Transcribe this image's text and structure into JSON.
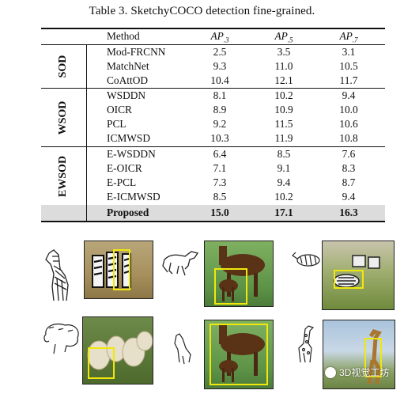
{
  "caption": "Table 3. SketchyCOCO detection fine-grained.",
  "table": {
    "header": {
      "method": "Method",
      "ap3": "AP.3",
      "ap5": "AP.5",
      "ap7": "AP.7"
    },
    "header_parts": {
      "ap": "AP",
      "s3": ".3",
      "s5": ".5",
      "s7": ".7"
    },
    "groups": [
      "SOD",
      "WSOD",
      "EWSOD"
    ],
    "rows": [
      {
        "method": "Mod-FRCNN",
        "ap3": "2.5",
        "ap5": "3.5",
        "ap7": "3.1"
      },
      {
        "method": "MatchNet",
        "ap3": "9.3",
        "ap5": "11.0",
        "ap7": "10.5"
      },
      {
        "method": "CoAttOD",
        "ap3": "10.4",
        "ap5": "12.1",
        "ap7": "11.7"
      },
      {
        "method": "WSDDN",
        "ap3": "8.1",
        "ap5": "10.2",
        "ap7": "9.4"
      },
      {
        "method": "OICR",
        "ap3": "8.9",
        "ap5": "10.9",
        "ap7": "10.0"
      },
      {
        "method": "PCL",
        "ap3": "9.2",
        "ap5": "11.5",
        "ap7": "10.6"
      },
      {
        "method": "ICMWSD",
        "ap3": "10.3",
        "ap5": "11.9",
        "ap7": "10.8"
      },
      {
        "method": "E-WSDDN",
        "ap3": "6.4",
        "ap5": "8.5",
        "ap7": "7.6"
      },
      {
        "method": "E-OICR",
        "ap3": "7.1",
        "ap5": "9.1",
        "ap7": "8.3"
      },
      {
        "method": "E-PCL",
        "ap3": "7.3",
        "ap5": "9.4",
        "ap7": "8.7"
      },
      {
        "method": "E-ICMWSD",
        "ap3": "8.5",
        "ap5": "10.2",
        "ap7": "9.4"
      },
      {
        "method": "Proposed",
        "ap3": "15.0",
        "ap5": "17.1",
        "ap7": "16.3"
      }
    ]
  },
  "figure": {
    "examples": [
      {
        "sketch": "zebra-sketch",
        "photo": "zebras-photo"
      },
      {
        "sketch": "horse-sketch",
        "photo": "horses-photo"
      },
      {
        "sketch": "zebra-lying-sketch",
        "photo": "zebras-field-photo"
      },
      {
        "sketch": "sheep-sketch",
        "photo": "sheep-photo"
      },
      {
        "sketch": "horse-head-sketch",
        "photo": "horses-photo-2"
      },
      {
        "sketch": "giraffe-sketch",
        "photo": "giraffe-photo"
      }
    ],
    "box_color": "#f0e80c"
  },
  "watermark": "3D视觉工坊"
}
